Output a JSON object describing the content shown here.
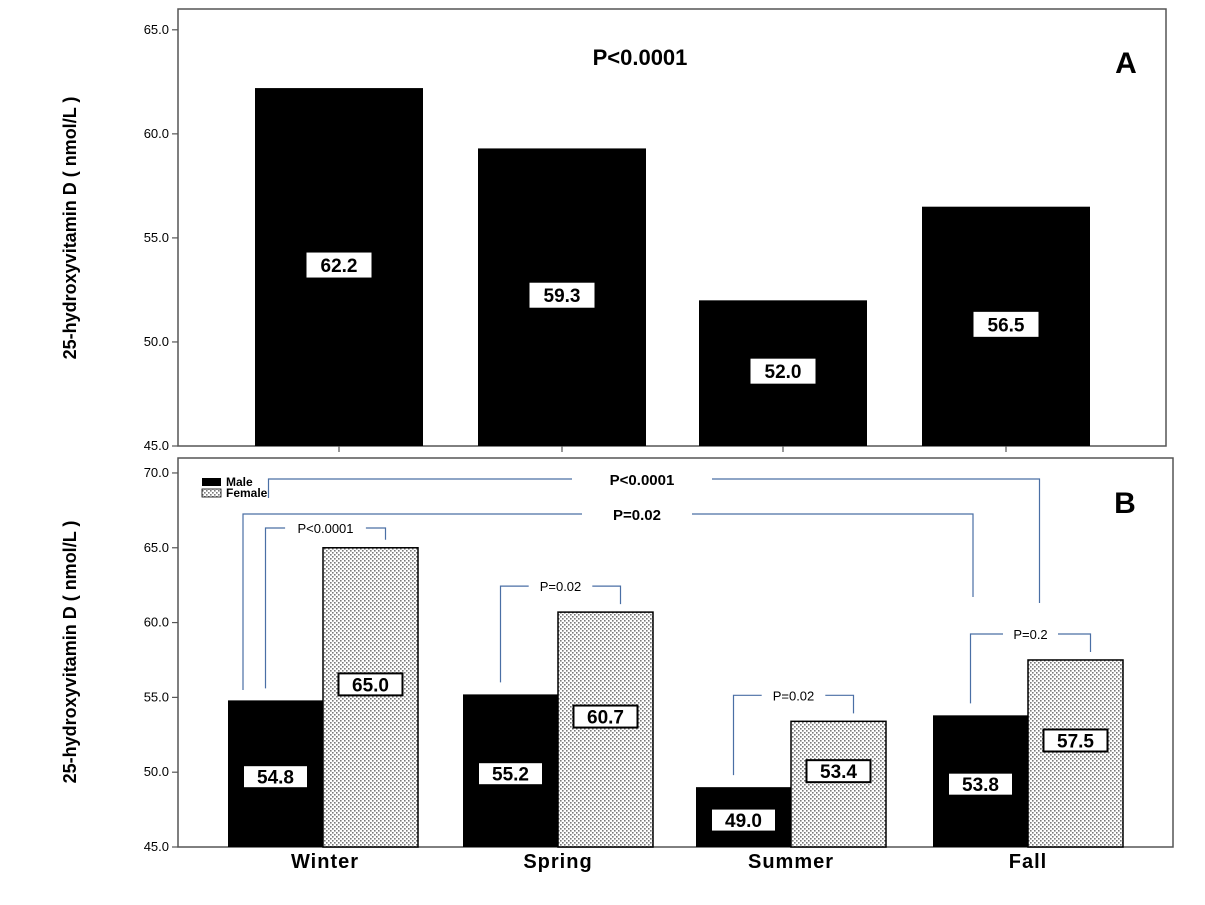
{
  "colors": {
    "male": "#000000",
    "female_pattern": "#8a8a8a",
    "bracket": "#4a6fa5",
    "frame": "#555555"
  },
  "chart_data": [
    {
      "type": "bar",
      "panel": "A",
      "categories": [
        "Winter",
        "Spring",
        "Summer",
        "Fall"
      ],
      "values": [
        62.2,
        59.3,
        52.0,
        56.5
      ],
      "value_labels": [
        "62.2",
        "59.3",
        "52.0",
        "56.5"
      ],
      "ylabel": "25-hydroxyvitamin D ( nmol/L )",
      "ylim": [
        45,
        66
      ],
      "yticks": [
        45,
        50,
        55,
        60,
        65
      ],
      "ytick_labels": [
        "45.0",
        "50.0",
        "55.0",
        "60.0",
        "65.0"
      ],
      "annotation": "P<0.0001"
    },
    {
      "type": "bar",
      "panel": "B",
      "categories": [
        "Winter",
        "Spring",
        "Summer",
        "Fall"
      ],
      "series": [
        {
          "name": "Male",
          "values": [
            54.8,
            55.2,
            49.0,
            53.8
          ],
          "value_labels": [
            "54.8",
            "55.2",
            "49.0",
            "53.8"
          ]
        },
        {
          "name": "Female",
          "values": [
            65.0,
            60.7,
            53.4,
            57.5
          ],
          "value_labels": [
            "65.0",
            "60.7",
            "53.4",
            "57.5"
          ]
        }
      ],
      "ylabel": "25-hydroxyvitamin D ( nmol/L )",
      "ylim": [
        45,
        71
      ],
      "yticks": [
        45,
        50,
        55,
        60,
        65,
        70
      ],
      "ytick_labels": [
        "45.0",
        "50.0",
        "55.0",
        "60.0",
        "65.0",
        "70.0"
      ],
      "legend": "top-left",
      "within_season_p": [
        "P<0.0001",
        "P=0.02",
        "P=0.02",
        "P=0.2"
      ],
      "across_season_p": [
        {
          "label": "P<0.0001",
          "from": "Winter Female",
          "to": "Fall Female"
        },
        {
          "label": "P=0.02",
          "from": "Winter Male",
          "to": "Fall Male"
        }
      ]
    }
  ]
}
